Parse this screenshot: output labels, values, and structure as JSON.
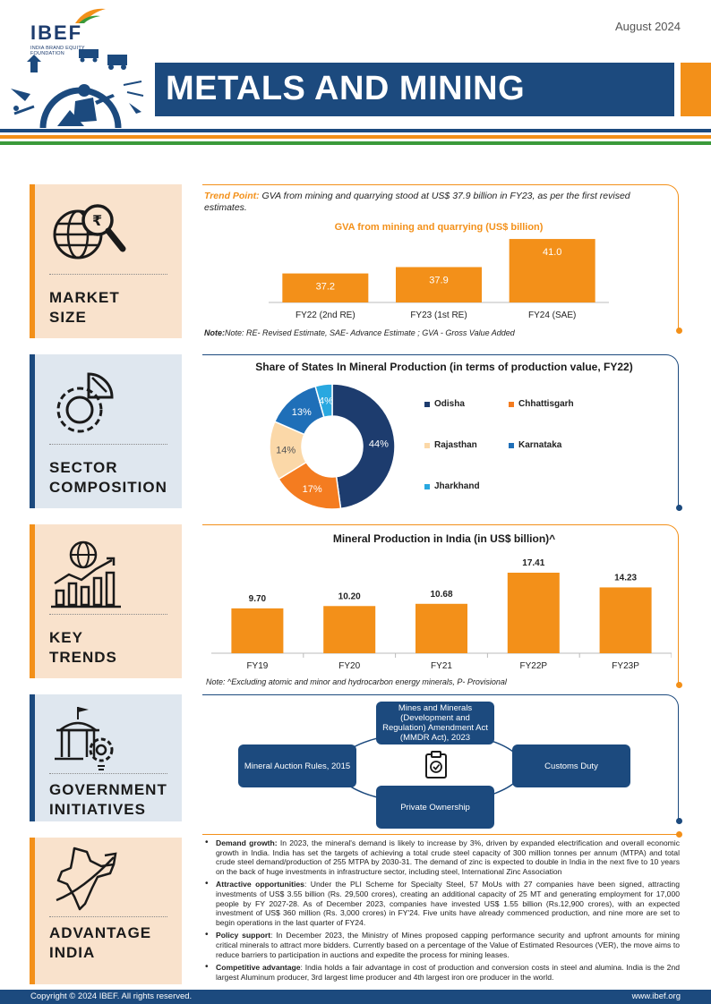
{
  "header": {
    "logo_text": "IBEF",
    "logo_sub": "INDIA BRAND EQUITY FOUNDATION",
    "date": "August 2024",
    "title": "METALS AND MINING"
  },
  "colors": {
    "navy": "#1c4a7e",
    "orange": "#f39019",
    "light_orange": "#f9e2cc",
    "light_blue": "#dfe7ef",
    "green": "#3a9a3a"
  },
  "market_size": {
    "label_line1": "MARKET",
    "label_line2": "SIZE",
    "icon": "globe-rupee-magnifier-icon",
    "trend_label": "Trend Point:",
    "trend_text": " GVA from mining and quarrying stood at US$ 37.9 billion in FY23, as per the first revised estimates.",
    "note": "Note: RE- Revised Estimate, SAE- Advance Estimate ; GVA - Gross Value Added"
  },
  "sector_composition": {
    "label_line1": "SECTOR",
    "label_line2": "COMPOSITION",
    "icon": "gear-pie-chart-icon"
  },
  "key_trends": {
    "label_line1": "KEY",
    "label_line2": "TRENDS",
    "icon": "globe-bar-chart-icon",
    "note": "Note: ^Excluding atomic and minor and hydrocarbon energy minerals, P- Provisional"
  },
  "government_initiatives": {
    "label_line1": "GOVERNMENT",
    "label_line2": "INITIATIVES",
    "icon": "government-building-gear-icon",
    "center_icon": "clipboard-check-icon",
    "boxes": {
      "top": "Mines and Minerals (Development and Regulation) Amendment Act (MMDR Act), 2023",
      "left": "Mineral Auction Rules, 2015",
      "right": "Customs Duty",
      "bottom": "Private Ownership"
    }
  },
  "advantage_india": {
    "label_line1": "ADVANTAGE",
    "label_line2": "INDIA",
    "icon": "india-map-arrow-icon",
    "items": [
      {
        "title": "Demand growth:",
        "text": " In 2023, the mineral's demand is likely to increase by 3%, driven by expanded electrification and overall economic growth in India. India has set the targets of achieving a total crude steel capacity of 300 million tonnes per annum (MTPA) and total crude steel demand/production of 255 MTPA by 2030-31. The demand of zinc is expected to double in India in the next five to 10 years on the back of huge investments in infrastructure sector, including steel, International Zinc Association"
      },
      {
        "title": "Attractive opportunities",
        "text": ": Under the PLI Scheme for Specialty Steel, 57 MoUs with 27 companies have been signed, attracting investments of US$ 3.55 billion (Rs. 29,500 crores), creating an additional capacity of 25 MT and generating employment for 17,000 people by FY 2027-28. As of December 2023, companies have invested US$ 1.55 billion (Rs.12,900 crores), with an expected investment of US$ 360 million (Rs. 3,000 crores) in FY'24. Five units have already commenced production, and nine more are set to begin operations in the last quarter of FY24."
      },
      {
        "title": "Policy support",
        "text": ": In December 2023, the Ministry of Mines proposed capping performance security and upfront amounts for mining critical minerals to attract more bidders. Currently based on a percentage of the Value of Estimated Resources (VER), the move aims to reduce barriers to participation in auctions and expedite the process for mining leases."
      },
      {
        "title": "Competitive advantage",
        "text": ": India holds a fair advantage in cost of production and conversion costs in steel and alumina. India is the 2nd largest Aluminum producer, 3rd largest lime producer and 4th largest iron ore producer in the world."
      }
    ]
  },
  "footer": {
    "copyright": "Copyright © 2024 IBEF. All rights reserved.",
    "site": "www.ibef.org"
  },
  "chart_data": [
    {
      "type": "bar",
      "title": "GVA from mining and quarrying (US$ billion)",
      "categories": [
        "FY22 (2nd RE)",
        "FY23 (1st RE)",
        "FY24 (SAE)"
      ],
      "values": [
        37.2,
        37.9,
        41.0
      ],
      "value_labels": [
        "37.2",
        "37.9",
        "41.0"
      ],
      "ylim": [
        34,
        41.5
      ],
      "grid": false
    },
    {
      "type": "pie",
      "title": "Share of States In Mineral Production (in terms of production value, FY22)",
      "labels": [
        "Odisha",
        "Chhattisgarh",
        "Rajasthan",
        "Karnataka",
        "Jharkhand"
      ],
      "values": [
        44,
        17,
        14,
        13,
        4
      ],
      "value_labels": [
        "44%",
        "17%",
        "14%",
        "13%",
        "4%"
      ],
      "colors": [
        "#1d3c6e",
        "#f47c20",
        "#fbd8a8",
        "#1f6fb8",
        "#29a8e0"
      ],
      "donut": true,
      "legend": "right"
    },
    {
      "type": "bar",
      "title": "Mineral Production in India (in US$ billion)^",
      "categories": [
        "FY19",
        "FY20",
        "FY21",
        "FY22P",
        "FY23P"
      ],
      "values": [
        9.7,
        10.2,
        10.68,
        17.41,
        14.23
      ],
      "value_labels": [
        "9.70",
        "10.20",
        "10.68",
        "17.41",
        "14.23"
      ],
      "ylim": [
        0,
        18
      ],
      "grid": false
    }
  ]
}
